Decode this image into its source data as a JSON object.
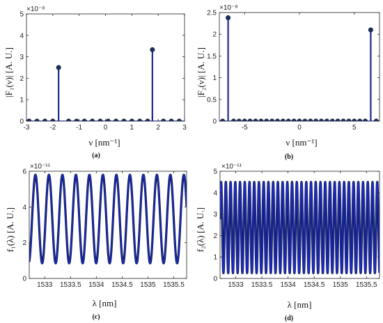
{
  "colors": {
    "stem": "#1d2a8c",
    "marker": "#1b2f5e",
    "line_dark": "#111f4d",
    "line_blue": "#1f2bd6"
  },
  "chart_data": [
    {
      "type": "stem",
      "caption": "(a)",
      "xlabel": "ν [nm⁻¹]",
      "ylabel": "|F₁(ν)| [A. U.]",
      "exponent": "×10⁻⁸",
      "xlim": [
        -3,
        3
      ],
      "ylim": [
        0,
        5
      ],
      "xticks": [
        -3,
        -2,
        -1,
        0,
        1,
        2,
        3
      ],
      "xticklabels": [
        "-3",
        "-2",
        "-1",
        "0",
        "1",
        "2",
        "3"
      ],
      "yticks": [
        0,
        1,
        2,
        3,
        4,
        5
      ],
      "yticklabels": [
        "0",
        "1",
        "2",
        "3",
        "4",
        "5"
      ],
      "x": [
        -2.9,
        -2.6,
        -2.3,
        -2.0,
        -1.78,
        -1.4,
        -1.1,
        -0.8,
        -0.5,
        -0.2,
        0.1,
        0.4,
        0.7,
        1.0,
        1.3,
        1.6,
        1.78,
        2.2,
        2.5,
        2.8
      ],
      "y": [
        0,
        0,
        0,
        0,
        2.5,
        0,
        0,
        0,
        0,
        0,
        0,
        0,
        0,
        0,
        0,
        0,
        3.33,
        0,
        0,
        0
      ]
    },
    {
      "type": "stem",
      "caption": "(b)",
      "xlabel": "ν [nm⁻¹]",
      "ylabel": "|F₂(ν)| [A. U.]",
      "exponent": "×10⁻⁸",
      "xlim": [
        -7.3,
        7.3
      ],
      "ylim": [
        0,
        2.5
      ],
      "xticks": [
        -5,
        0,
        5
      ],
      "xticklabels": [
        "-5",
        "0",
        "5"
      ],
      "yticks": [
        0,
        0.5,
        1,
        1.5,
        2,
        2.5
      ],
      "yticklabels": [
        "0",
        "0.5",
        "1",
        "1.5",
        "2",
        "2.5"
      ],
      "x": [
        -7.0,
        -6.5,
        -6.0,
        -5.5,
        -5.0,
        -4.5,
        -4.0,
        -3.5,
        -3.0,
        -2.5,
        -2.0,
        -1.5,
        -1.0,
        -0.5,
        0.0,
        0.5,
        1.0,
        1.5,
        2.0,
        2.5,
        3.0,
        3.5,
        4.0,
        4.5,
        5.0,
        5.5,
        6.0,
        6.5,
        7.0
      ],
      "y": [
        0,
        2.38,
        0,
        0,
        0,
        0,
        0,
        0,
        0,
        0,
        0,
        0,
        0,
        0,
        0,
        0,
        0,
        0,
        0,
        0,
        0,
        0,
        0,
        0,
        0,
        0,
        0,
        2.1,
        0
      ]
    },
    {
      "type": "line",
      "caption": "(c)",
      "xlabel": "λ [nm]",
      "ylabel": "f₁(λ) [A. U.]",
      "exponent": "×10⁻¹¹",
      "xlim": [
        1532.7,
        1535.75
      ],
      "ylim": [
        0,
        6
      ],
      "xticks": [
        1533,
        1533.5,
        1534,
        1534.5,
        1535,
        1535.5
      ],
      "xticklabels": [
        "1533",
        "1533.5",
        "1534",
        "1534.5",
        "1535",
        "1535.5"
      ],
      "yticks": [
        0,
        2,
        4,
        6
      ],
      "yticklabels": [
        "0",
        "2",
        "4",
        "6"
      ],
      "series": [
        {
          "min": 0.85,
          "max": 5.8,
          "period_nm": 0.2615,
          "phase_nm": 1532.82,
          "points": 1400
        }
      ]
    },
    {
      "type": "line",
      "caption": "(d)",
      "xlabel": "λ [nm]",
      "ylabel": "f₂(λ) [A. U.]",
      "exponent": "×10⁻¹¹",
      "xlim": [
        1532.7,
        1535.75
      ],
      "ylim": [
        0,
        5
      ],
      "xticks": [
        1533,
        1533.5,
        1534,
        1534.5,
        1535,
        1535.5
      ],
      "xticklabels": [
        "1533",
        "1533.5",
        "1534",
        "1534.5",
        "1535",
        "1535.5"
      ],
      "yticks": [
        0,
        1,
        2,
        3,
        4,
        5
      ],
      "yticklabels": [
        "0",
        "1",
        "2",
        "3",
        "4",
        "5"
      ],
      "series": [
        {
          "min": 0.25,
          "max": 4.5,
          "period_nm": 0.0905,
          "phase_nm": 1532.72,
          "points": 2400
        }
      ]
    }
  ]
}
